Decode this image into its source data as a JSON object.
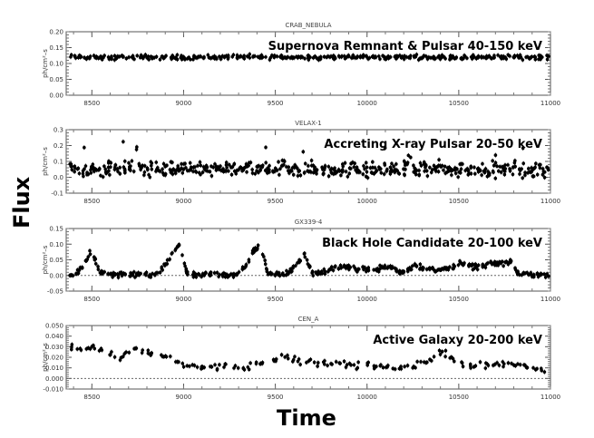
{
  "chart_data": [
    {
      "type": "scatter",
      "title": "CRAB_NEBULA",
      "annotation": "Supernova Remnant & Pulsar 40-150 keV",
      "ylabel": "ph/cm²–s",
      "xlim": [
        8360,
        11000
      ],
      "ylim": [
        0.0,
        0.2
      ],
      "yticks": [
        "0.00",
        "0.05",
        "0.10",
        "0.15",
        "0.20"
      ],
      "ytick_values": [
        0.0,
        0.05,
        0.1,
        0.15,
        0.2
      ],
      "zero_line": false,
      "scatter": 0.006,
      "density": 6,
      "t_start": 8380,
      "t_step": 40,
      "values": [
        0.12,
        0.121,
        0.119,
        0.12,
        0.118,
        0.117,
        0.119,
        0.12,
        0.118,
        0.12,
        0.121,
        0.119,
        0.12,
        0.118,
        0.119,
        0.12,
        0.119,
        0.12,
        0.121,
        0.12,
        0.119,
        0.12,
        0.121,
        0.12,
        0.122,
        0.12,
        0.119,
        0.12,
        0.121,
        0.12,
        0.119,
        0.12,
        0.121,
        0.12,
        0.119,
        0.12,
        0.121,
        0.12,
        0.119,
        0.12,
        0.121,
        0.12,
        0.119,
        0.12,
        0.121,
        0.12,
        0.119,
        0.12,
        0.121,
        0.12,
        0.119,
        0.12,
        0.121,
        0.12,
        0.119,
        0.12,
        0.121,
        0.12,
        0.119,
        0.12,
        0.121,
        0.12,
        0.119,
        0.12,
        0.121,
        0.12
      ]
    },
    {
      "type": "scatter",
      "title": "VELAX-1",
      "annotation": "Accreting X-ray Pulsar 20-50 keV",
      "ylabel": "ph/cm²–s",
      "xlim": [
        8360,
        11000
      ],
      "ylim": [
        -0.1,
        0.3
      ],
      "yticks": [
        "-0.1",
        "0.0",
        "0.1",
        "0.2",
        "0.3"
      ],
      "ytick_values": [
        -0.1,
        0.0,
        0.1,
        0.2,
        0.3
      ],
      "zero_line": false,
      "scatter": 0.04,
      "density": 8,
      "t_start": 8380,
      "t_step": 40,
      "values": [
        0.05,
        0.045,
        0.05,
        0.055,
        0.04,
        0.05,
        0.045,
        0.05,
        0.06,
        0.05,
        0.055,
        0.05,
        0.06,
        0.055,
        0.05,
        0.045,
        0.05,
        0.055,
        0.05,
        0.045,
        0.05,
        0.04,
        0.05,
        0.055,
        0.05,
        0.06,
        0.045,
        0.05,
        0.05,
        0.055,
        0.05,
        0.045,
        0.05,
        0.06,
        0.05,
        0.05,
        0.045,
        0.05,
        0.055,
        0.05,
        0.045,
        0.05,
        0.05,
        0.045,
        0.05,
        0.055,
        0.05,
        0.045,
        0.05,
        0.05,
        0.055,
        0.05,
        0.045,
        0.05,
        0.05,
        0.055,
        0.05,
        0.045,
        0.05,
        0.05,
        0.055,
        0.05,
        0.045,
        0.05,
        0.05,
        0.045
      ]
    },
    {
      "type": "scatter",
      "title": "GX339-4",
      "annotation": "Black Hole Candidate 20-100 keV",
      "ylabel": "ph/cm²–s",
      "xlim": [
        8360,
        11000
      ],
      "ylim": [
        -0.05,
        0.15
      ],
      "yticks": [
        "-0.05",
        "0.00",
        "0.05",
        "0.10",
        "0.15"
      ],
      "ytick_values": [
        -0.05,
        0.0,
        0.05,
        0.1,
        0.15
      ],
      "zero_line": true,
      "scatter": 0.007,
      "density": 7,
      "t_start": 8380,
      "t_step": 40,
      "values": [
        0.0,
        0.005,
        0.04,
        0.085,
        0.012,
        0.005,
        0.005,
        0.003,
        0.004,
        0.002,
        0.004,
        0.0,
        0.005,
        0.035,
        0.07,
        0.1,
        0.005,
        0.003,
        0.0,
        0.005,
        0.002,
        0.003,
        0.0,
        0.005,
        0.03,
        0.075,
        0.1,
        0.005,
        0.003,
        0.005,
        0.01,
        0.04,
        0.07,
        0.005,
        0.008,
        0.015,
        0.022,
        0.03,
        0.025,
        0.02,
        0.025,
        0.015,
        0.02,
        0.03,
        0.025,
        0.01,
        0.015,
        0.035,
        0.025,
        0.02,
        0.015,
        0.02,
        0.025,
        0.04,
        0.035,
        0.025,
        0.03,
        0.035,
        0.04,
        0.035,
        0.045,
        0.01,
        0.005,
        0.005,
        0.003,
        0.0
      ]
    },
    {
      "type": "scatter",
      "title": "CEN_A",
      "annotation": "Active Galaxy 20-200 keV",
      "ylabel": "ph/cm²–s",
      "xlim": [
        8360,
        11000
      ],
      "ylim": [
        -0.01,
        0.05
      ],
      "yticks": [
        "-0.010",
        "0.000",
        "0.010",
        "0.020",
        "0.030",
        "0.040",
        "0.050"
      ],
      "ytick_values": [
        -0.01,
        0.0,
        0.01,
        0.02,
        0.03,
        0.04,
        0.05
      ],
      "zero_line": true,
      "scatter": 0.003,
      "density": 3,
      "t_start": 8380,
      "t_step": 40,
      "values": [
        0.03,
        0.028,
        0.027,
        0.03,
        0.028,
        0.025,
        0.022,
        0.02,
        0.025,
        0.027,
        0.025,
        0.022,
        0.02,
        0.022,
        0.018,
        0.013,
        0.012,
        0.014,
        0.01,
        0.012,
        0.011,
        0.013,
        0.01,
        0.012,
        0.009,
        0.012,
        0.014,
        0.015,
        0.018,
        0.02,
        0.018,
        0.016,
        0.015,
        0.017,
        0.012,
        0.015,
        0.016,
        0.013,
        0.014,
        0.012,
        0.015,
        0.013,
        0.011,
        0.014,
        0.012,
        0.01,
        0.013,
        0.012,
        0.015,
        0.018,
        0.022,
        0.025,
        0.02,
        0.014,
        0.012,
        0.013,
        0.011,
        0.012,
        0.013,
        0.014,
        0.016,
        0.013,
        0.011,
        0.012,
        0.01,
        0.008
      ]
    }
  ],
  "xticks": [
    "8500",
    "9000",
    "9500",
    "10000",
    "10500",
    "11000"
  ],
  "xtick_values": [
    8500,
    9000,
    9500,
    10000,
    10500,
    11000
  ],
  "xlabel": "Time",
  "ylabel_main": "Flux"
}
